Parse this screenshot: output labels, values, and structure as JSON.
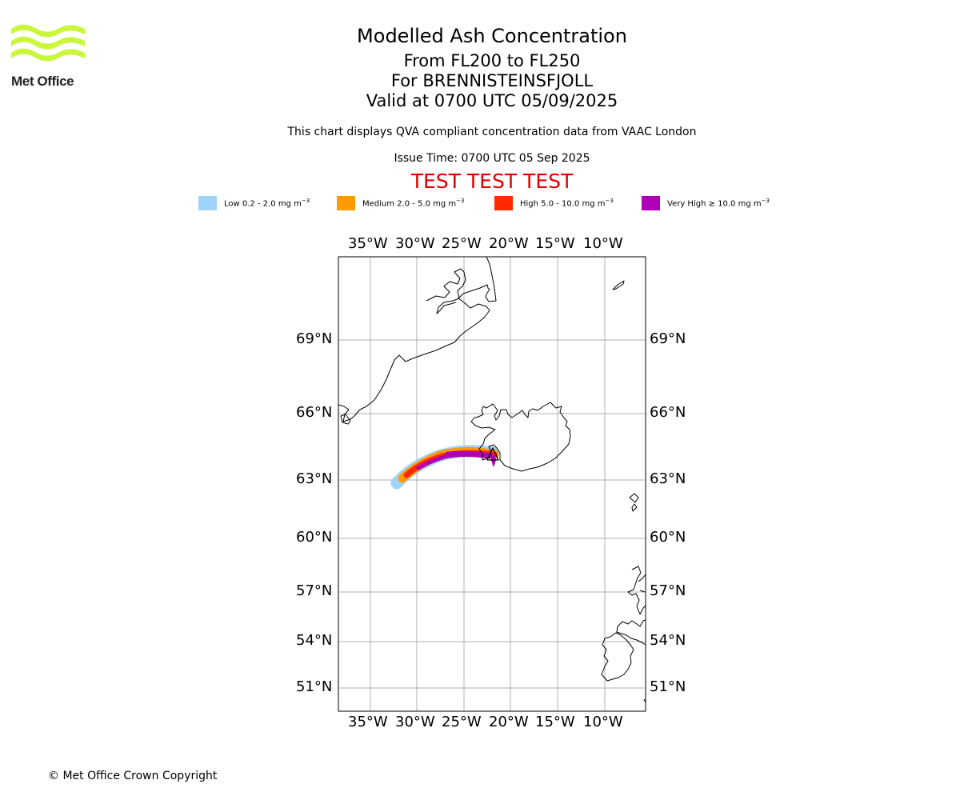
{
  "logo": {
    "text": "Met Office",
    "color": "#c8f73c"
  },
  "header": {
    "title": "Modelled Ash Concentration",
    "levels": "From FL200 to FL250",
    "volcano": "For BRENNISTEINSFJOLL",
    "valid": "Valid at 0700 UTC 05/09/2025",
    "description": "This chart displays QVA compliant concentration data from VAAC London",
    "issue_time": "Issue Time: 0700 UTC 05 Sep 2025",
    "test_banner": "TEST TEST TEST"
  },
  "legend": [
    {
      "label": "Low 0.2 - 2.0 mg m",
      "color": "#9fd3fa"
    },
    {
      "label": "Medium 2.0 - 5.0 mg m",
      "color": "#ff9a00"
    },
    {
      "label": "High 5.0 - 10.0 mg m",
      "color": "#ff2a00"
    },
    {
      "label": "Very High ≥ 10.0 mg m",
      "color": "#b000b5"
    }
  ],
  "map": {
    "lon_ticks": [
      "35°W",
      "30°W",
      "25°W",
      "20°W",
      "15°W",
      "10°W"
    ],
    "lat_ticks": [
      "69°N",
      "66°N",
      "63°N",
      "60°N",
      "57°N",
      "54°N",
      "51°N"
    ],
    "grid": true,
    "volcano_marker": "triangle-icon"
  },
  "footer": {
    "copyright": "© Met Office Crown Copyright"
  }
}
